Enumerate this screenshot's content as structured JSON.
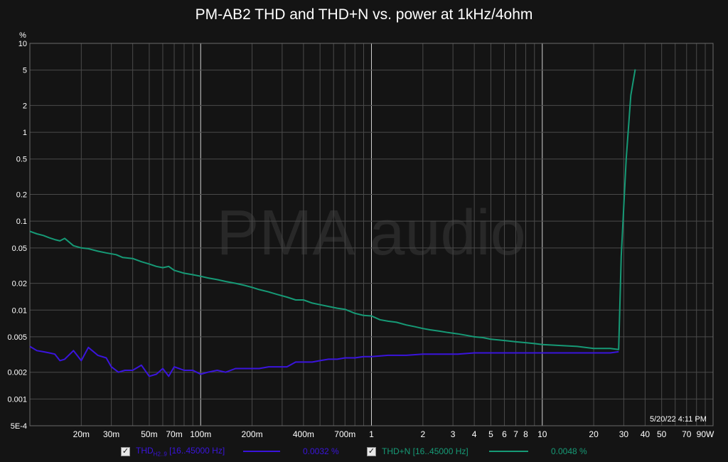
{
  "title": "PM-AB2 THD and THD+N vs. power at 1kHz/4ohm",
  "watermark": "PMA audio",
  "timestamp": "5/20/22 4:11 PM",
  "legend": [
    {
      "checked": "✓",
      "label_main": "THD",
      "label_sub": "H2..9",
      "label_rest": " [16..45000 Hz]",
      "value": "0.0032 %",
      "color": "#3a14dc"
    },
    {
      "checked": "✓",
      "label": "THD+N [16..45000 Hz]",
      "value": "0.0048 %",
      "color": "#169a76"
    }
  ],
  "chart_data": {
    "type": "line",
    "title": "PM-AB2 THD and THD+N vs. power at 1kHz/4ohm",
    "ylabel": "%",
    "xlabel": "",
    "xscale": "log",
    "yscale": "log",
    "xlim": [
      0.01,
      100
    ],
    "ylim": [
      0.0005,
      10
    ],
    "grid": true,
    "x_ticks": [
      {
        "v": 0.02,
        "label": "20m"
      },
      {
        "v": 0.03,
        "label": "30m"
      },
      {
        "v": 0.05,
        "label": "50m"
      },
      {
        "v": 0.07,
        "label": "70m"
      },
      {
        "v": 0.1,
        "label": "100m"
      },
      {
        "v": 0.2,
        "label": "200m"
      },
      {
        "v": 0.4,
        "label": "400m"
      },
      {
        "v": 0.7,
        "label": "700m"
      },
      {
        "v": 1,
        "label": "1"
      },
      {
        "v": 2,
        "label": "2"
      },
      {
        "v": 3,
        "label": "3"
      },
      {
        "v": 4,
        "label": "4"
      },
      {
        "v": 5,
        "label": "5"
      },
      {
        "v": 6,
        "label": "6"
      },
      {
        "v": 7,
        "label": "7"
      },
      {
        "v": 8,
        "label": "8"
      },
      {
        "v": 10,
        "label": "10"
      },
      {
        "v": 20,
        "label": "20"
      },
      {
        "v": 30,
        "label": "30"
      },
      {
        "v": 40,
        "label": "40"
      },
      {
        "v": 50,
        "label": "50"
      },
      {
        "v": 70,
        "label": "70"
      },
      {
        "v": 90,
        "label": "90W"
      }
    ],
    "y_ticks": [
      {
        "v": 10,
        "label": "10"
      },
      {
        "v": 5,
        "label": "5"
      },
      {
        "v": 2,
        "label": "2"
      },
      {
        "v": 1,
        "label": "1"
      },
      {
        "v": 0.5,
        "label": "0.5"
      },
      {
        "v": 0.2,
        "label": "0.2"
      },
      {
        "v": 0.1,
        "label": "0.1"
      },
      {
        "v": 0.05,
        "label": "0.05"
      },
      {
        "v": 0.02,
        "label": "0.02"
      },
      {
        "v": 0.01,
        "label": "0.01"
      },
      {
        "v": 0.005,
        "label": "0.005"
      },
      {
        "v": 0.002,
        "label": "0.002"
      },
      {
        "v": 0.001,
        "label": "0.001"
      },
      {
        "v": 0.0005,
        "label": "5E-4"
      }
    ],
    "series": [
      {
        "name": "THD+N [16..45000 Hz]",
        "color": "#169a76",
        "points": [
          [
            0.01,
            0.077
          ],
          [
            0.011,
            0.072
          ],
          [
            0.012,
            0.069
          ],
          [
            0.013,
            0.065
          ],
          [
            0.014,
            0.062
          ],
          [
            0.015,
            0.06
          ],
          [
            0.016,
            0.064
          ],
          [
            0.018,
            0.053
          ],
          [
            0.02,
            0.05
          ],
          [
            0.022,
            0.049
          ],
          [
            0.025,
            0.046
          ],
          [
            0.028,
            0.044
          ],
          [
            0.032,
            0.042
          ],
          [
            0.035,
            0.039
          ],
          [
            0.04,
            0.038
          ],
          [
            0.045,
            0.035
          ],
          [
            0.05,
            0.033
          ],
          [
            0.055,
            0.031
          ],
          [
            0.06,
            0.03
          ],
          [
            0.065,
            0.031
          ],
          [
            0.07,
            0.028
          ],
          [
            0.08,
            0.026
          ],
          [
            0.09,
            0.025
          ],
          [
            0.1,
            0.024
          ],
          [
            0.11,
            0.023
          ],
          [
            0.125,
            0.022
          ],
          [
            0.14,
            0.021
          ],
          [
            0.16,
            0.02
          ],
          [
            0.18,
            0.019
          ],
          [
            0.2,
            0.018
          ],
          [
            0.22,
            0.017
          ],
          [
            0.25,
            0.016
          ],
          [
            0.28,
            0.015
          ],
          [
            0.32,
            0.014
          ],
          [
            0.36,
            0.013
          ],
          [
            0.4,
            0.013
          ],
          [
            0.45,
            0.012
          ],
          [
            0.5,
            0.0115
          ],
          [
            0.56,
            0.011
          ],
          [
            0.63,
            0.0105
          ],
          [
            0.7,
            0.0102
          ],
          [
            0.8,
            0.0092
          ],
          [
            0.9,
            0.0087
          ],
          [
            1.0,
            0.0086
          ],
          [
            1.12,
            0.0078
          ],
          [
            1.25,
            0.0075
          ],
          [
            1.4,
            0.0073
          ],
          [
            1.6,
            0.0068
          ],
          [
            1.8,
            0.0065
          ],
          [
            2.0,
            0.0062
          ],
          [
            2.2,
            0.006
          ],
          [
            2.5,
            0.0058
          ],
          [
            2.8,
            0.0056
          ],
          [
            3.2,
            0.0054
          ],
          [
            3.6,
            0.0052
          ],
          [
            4.0,
            0.005
          ],
          [
            4.5,
            0.0049
          ],
          [
            5.0,
            0.0047
          ],
          [
            5.6,
            0.0046
          ],
          [
            6.3,
            0.0045
          ],
          [
            7.0,
            0.0044
          ],
          [
            8.0,
            0.0043
          ],
          [
            9.0,
            0.0042
          ],
          [
            10,
            0.0041
          ],
          [
            12.5,
            0.004
          ],
          [
            16,
            0.0039
          ],
          [
            20,
            0.0037
          ],
          [
            25,
            0.0037
          ],
          [
            28,
            0.0036
          ],
          [
            29,
            0.04
          ],
          [
            31,
            0.5
          ],
          [
            33,
            2.6
          ],
          [
            35,
            5.1
          ]
        ]
      },
      {
        "name": "THD [16..45000 Hz]",
        "color": "#3a14dc",
        "points": [
          [
            0.01,
            0.0039
          ],
          [
            0.011,
            0.0035
          ],
          [
            0.012,
            0.0034
          ],
          [
            0.013,
            0.0033
          ],
          [
            0.014,
            0.0032
          ],
          [
            0.015,
            0.0027
          ],
          [
            0.016,
            0.0028
          ],
          [
            0.018,
            0.0035
          ],
          [
            0.02,
            0.0027
          ],
          [
            0.022,
            0.0038
          ],
          [
            0.025,
            0.0031
          ],
          [
            0.028,
            0.0029
          ],
          [
            0.03,
            0.0023
          ],
          [
            0.033,
            0.002
          ],
          [
            0.036,
            0.0021
          ],
          [
            0.04,
            0.0021
          ],
          [
            0.045,
            0.0024
          ],
          [
            0.05,
            0.0018
          ],
          [
            0.055,
            0.0019
          ],
          [
            0.06,
            0.0022
          ],
          [
            0.065,
            0.0018
          ],
          [
            0.07,
            0.0023
          ],
          [
            0.08,
            0.0021
          ],
          [
            0.09,
            0.0021
          ],
          [
            0.1,
            0.0019
          ],
          [
            0.11,
            0.002
          ],
          [
            0.125,
            0.0021
          ],
          [
            0.14,
            0.002
          ],
          [
            0.16,
            0.0022
          ],
          [
            0.18,
            0.0022
          ],
          [
            0.2,
            0.0022
          ],
          [
            0.22,
            0.0022
          ],
          [
            0.25,
            0.0023
          ],
          [
            0.28,
            0.0023
          ],
          [
            0.32,
            0.0023
          ],
          [
            0.36,
            0.0026
          ],
          [
            0.4,
            0.0026
          ],
          [
            0.45,
            0.0026
          ],
          [
            0.5,
            0.0027
          ],
          [
            0.56,
            0.0028
          ],
          [
            0.63,
            0.0028
          ],
          [
            0.7,
            0.0029
          ],
          [
            0.8,
            0.0029
          ],
          [
            0.9,
            0.003
          ],
          [
            1.0,
            0.003
          ],
          [
            1.25,
            0.0031
          ],
          [
            1.6,
            0.0031
          ],
          [
            2.0,
            0.0032
          ],
          [
            2.5,
            0.0032
          ],
          [
            3.2,
            0.0032
          ],
          [
            4.0,
            0.0033
          ],
          [
            5.0,
            0.0033
          ],
          [
            6.3,
            0.0033
          ],
          [
            8.0,
            0.0033
          ],
          [
            10,
            0.0033
          ],
          [
            12.5,
            0.0033
          ],
          [
            16,
            0.0033
          ],
          [
            20,
            0.0033
          ],
          [
            25,
            0.0033
          ],
          [
            28,
            0.0034
          ]
        ]
      }
    ]
  }
}
